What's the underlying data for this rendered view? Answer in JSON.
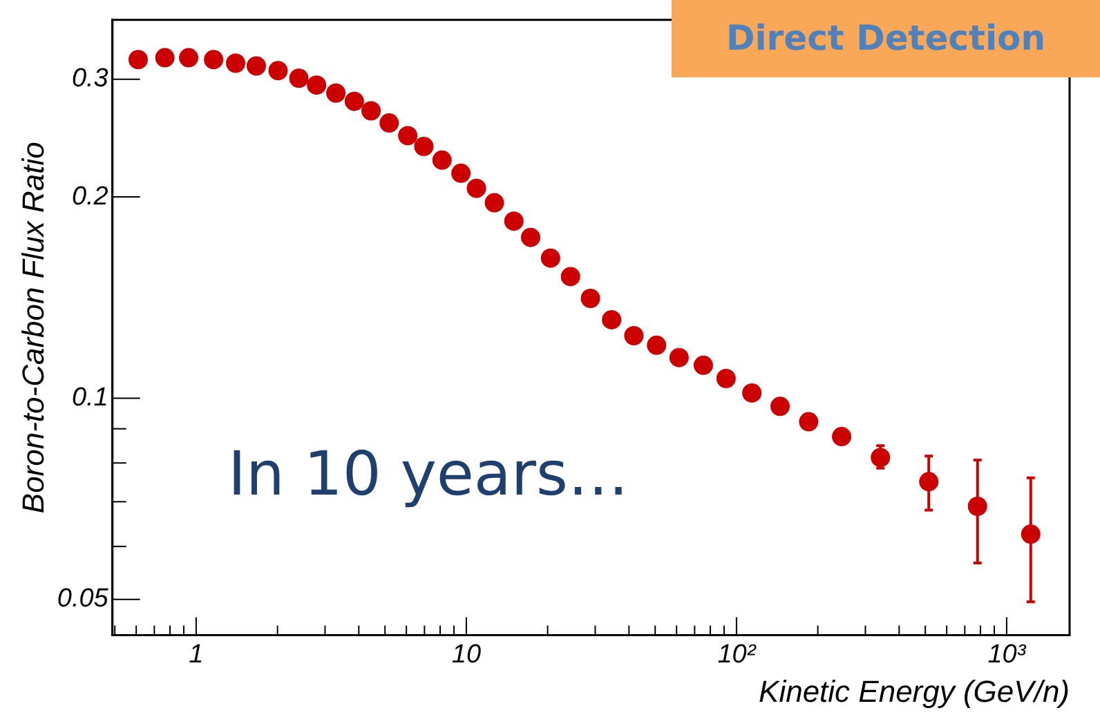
{
  "chart_data": {
    "type": "scatter",
    "xlabel": "Kinetic Energy (GeV/n)",
    "ylabel": "Boron-to-Carbon Flux Ratio",
    "annotations": [
      "Direct Detection",
      "In 10 years…"
    ],
    "log": "xy",
    "marker": "circle",
    "color": "#cc0000",
    "x": [
      0.61,
      0.766,
      0.938,
      1.16,
      1.4,
      1.67,
      2.01,
      2.4,
      2.79,
      3.29,
      3.85,
      4.44,
      5.18,
      6.07,
      6.96,
      8.13,
      9.55,
      10.9,
      12.7,
      15,
      17.3,
      20.5,
      24.3,
      28.8,
      34.5,
      41.7,
      50.6,
      61.3,
      75.4,
      91.5,
      114,
      145,
      185,
      245,
      341,
      515,
      780,
      1228
    ],
    "values": [
      0.321,
      0.323,
      0.323,
      0.321,
      0.317,
      0.314,
      0.309,
      0.301,
      0.294,
      0.286,
      0.278,
      0.269,
      0.258,
      0.247,
      0.238,
      0.227,
      0.217,
      0.206,
      0.196,
      0.184,
      0.174,
      0.162,
      0.152,
      0.141,
      0.131,
      0.124,
      0.12,
      0.115,
      0.112,
      0.107,
      0.1018,
      0.0972,
      0.0922,
      0.0876,
      0.0815,
      0.075,
      0.0689,
      0.0626
    ],
    "errors": [
      null,
      null,
      null,
      null,
      null,
      null,
      null,
      null,
      null,
      null,
      null,
      null,
      null,
      null,
      null,
      null,
      null,
      null,
      null,
      null,
      null,
      null,
      null,
      null,
      null,
      null,
      null,
      null,
      null,
      null,
      null,
      null,
      null,
      null,
      [
        0.0786,
        0.0849
      ],
      [
        0.068,
        0.0819
      ],
      [
        0.0567,
        0.0808
      ],
      [
        0.0496,
        0.076
      ]
    ],
    "xlim": [
      0.49,
      1710
    ],
    "ylim": [
      0.0442,
      0.368
    ],
    "xticks": [
      {
        "value": 0.5,
        "label": null
      },
      {
        "value": 0.6,
        "label": null
      },
      {
        "value": 0.7,
        "label": null
      },
      {
        "value": 0.8,
        "label": null
      },
      {
        "value": 0.9,
        "label": null
      },
      1,
      {
        "value": 2,
        "label": null
      },
      {
        "value": 3,
        "label": null
      },
      {
        "value": 4,
        "label": null
      },
      {
        "value": 5,
        "label": null
      },
      {
        "value": 6,
        "label": null
      },
      {
        "value": 7,
        "label": null
      },
      {
        "value": 8,
        "label": null
      },
      {
        "value": 9,
        "label": null
      },
      10,
      {
        "value": 20,
        "label": null
      },
      {
        "value": 30,
        "label": null
      },
      {
        "value": 40,
        "label": null
      },
      {
        "value": 50,
        "label": null
      },
      {
        "value": 60,
        "label": null
      },
      {
        "value": 70,
        "label": null
      },
      {
        "value": 80,
        "label": null
      },
      {
        "value": 90,
        "label": null
      },
      {
        "value": 100,
        "label": "10²"
      },
      {
        "value": 200,
        "label": null
      },
      {
        "value": 300,
        "label": null
      },
      {
        "value": 400,
        "label": null
      },
      {
        "value": 500,
        "label": null
      },
      {
        "value": 600,
        "label": null
      },
      {
        "value": 700,
        "label": null
      },
      {
        "value": 800,
        "label": null
      },
      {
        "value": 900,
        "label": null
      },
      {
        "value": 1000,
        "label": "10³"
      }
    ],
    "yticks": [
      0.05,
      {
        "value": 0.06,
        "label": null
      },
      {
        "value": 0.07,
        "label": null
      },
      {
        "value": 0.08,
        "label": null
      },
      {
        "value": 0.09,
        "label": null
      },
      0.1,
      0.2,
      0.3
    ]
  }
}
